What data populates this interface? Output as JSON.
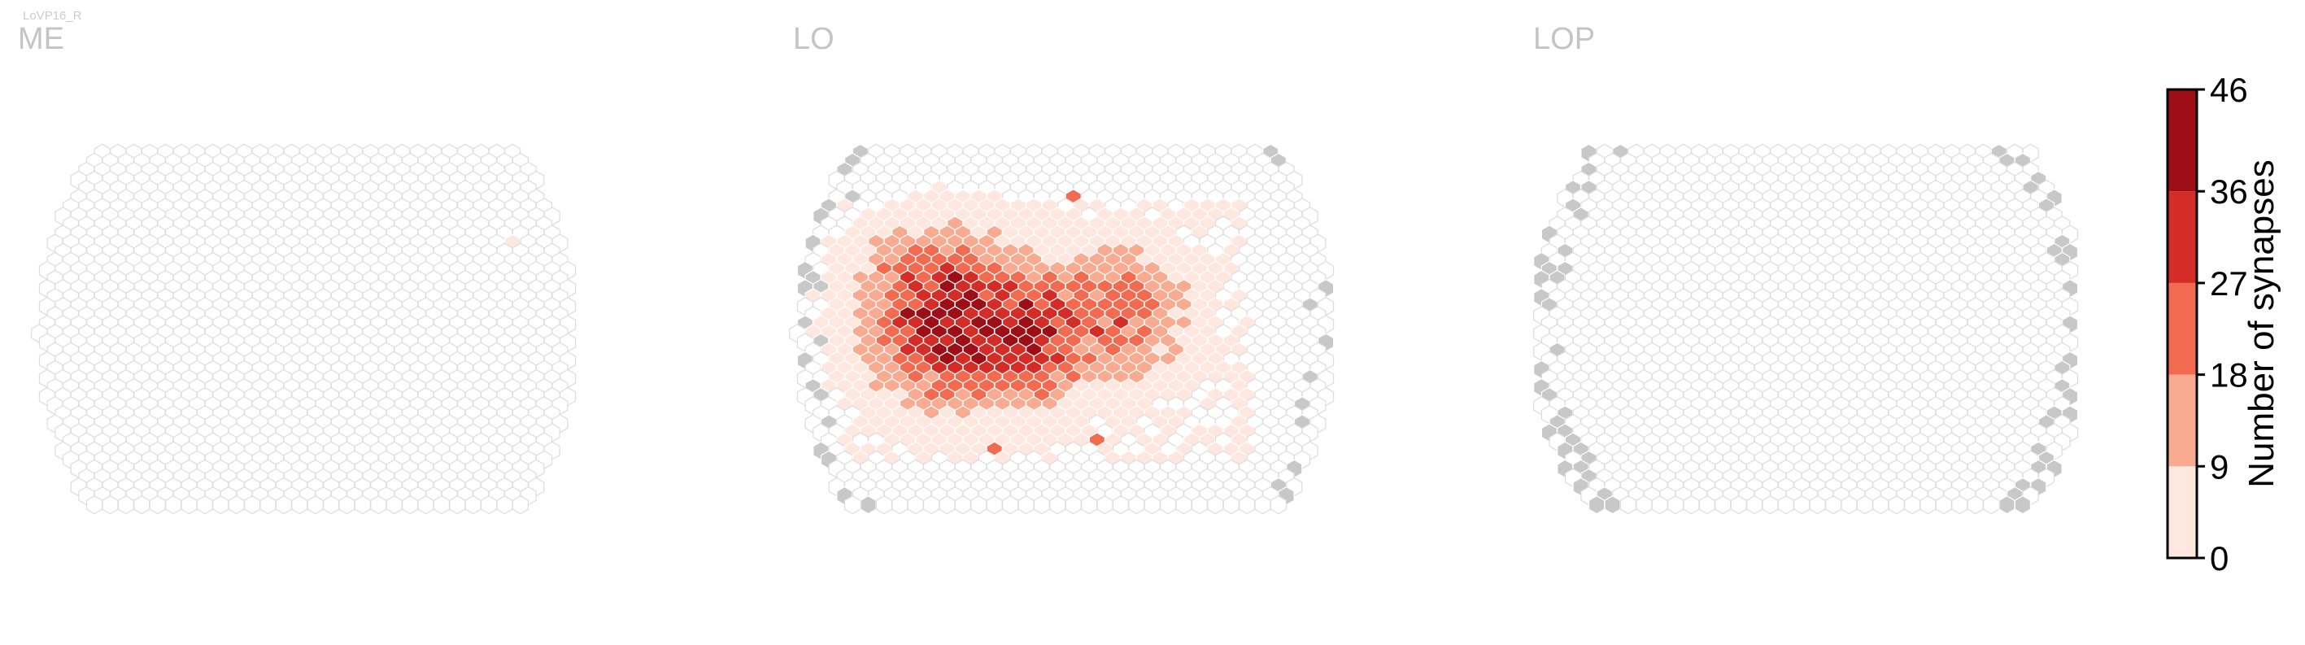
{
  "figure": {
    "cell_type_label": "LoVP16_R"
  },
  "chart_data": {
    "type": "heatmap",
    "title": "",
    "panels": [
      {
        "name": "ME",
        "seed": 11,
        "hotspots": [],
        "extra_cells": [
          {
            "col": 30,
            "row": 10,
            "value": 5
          }
        ],
        "edge_grey": false
      },
      {
        "name": "LO",
        "seed": 29,
        "hotspots": [
          {
            "col": 10,
            "row": 19,
            "peak": 44,
            "spread": 3.6
          },
          {
            "col": 14,
            "row": 20,
            "peak": 40,
            "spread": 3.2
          },
          {
            "col": 20,
            "row": 18,
            "peak": 26,
            "spread": 3.0
          },
          {
            "col": 7,
            "row": 14,
            "peak": 24,
            "spread": 2.4
          }
        ],
        "sparse_regions": [
          {
            "col_min": 3,
            "col_max": 28,
            "row_min": 6,
            "row_max": 34,
            "value": 4,
            "fraction": 0.58
          }
        ],
        "extra_cells": [
          {
            "col": 17,
            "row": 5,
            "value": 19
          },
          {
            "col": 12,
            "row": 33,
            "value": 23
          },
          {
            "col": 19,
            "row": 32,
            "value": 27
          }
        ],
        "edge_grey": true,
        "edge_grey_fraction": 0.3
      },
      {
        "name": "LOP",
        "seed": 47,
        "hotspots": [],
        "extra_cells": [],
        "edge_grey": true,
        "edge_grey_fraction": 0.42
      }
    ],
    "colorbar": {
      "label": "Number of synapses",
      "ticks": [
        0,
        9,
        18,
        27,
        36,
        46
      ],
      "range": [
        0,
        46
      ],
      "bins": [
        {
          "from": 0,
          "to": 9,
          "color": "#fde7df"
        },
        {
          "from": 9,
          "to": 18,
          "color": "#f8ab90"
        },
        {
          "from": 18,
          "to": 27,
          "color": "#f26a4f"
        },
        {
          "from": 27,
          "to": 36,
          "color": "#d42d27"
        },
        {
          "from": 36,
          "to": 46,
          "color": "#9e0e16"
        }
      ]
    },
    "colors": {
      "empty_cell_stroke": "#dcdcdc",
      "empty_cell_fill": "#ffffff",
      "no_data_fill": "#c8c8c8",
      "panel_label": "#c4c4c4"
    }
  }
}
